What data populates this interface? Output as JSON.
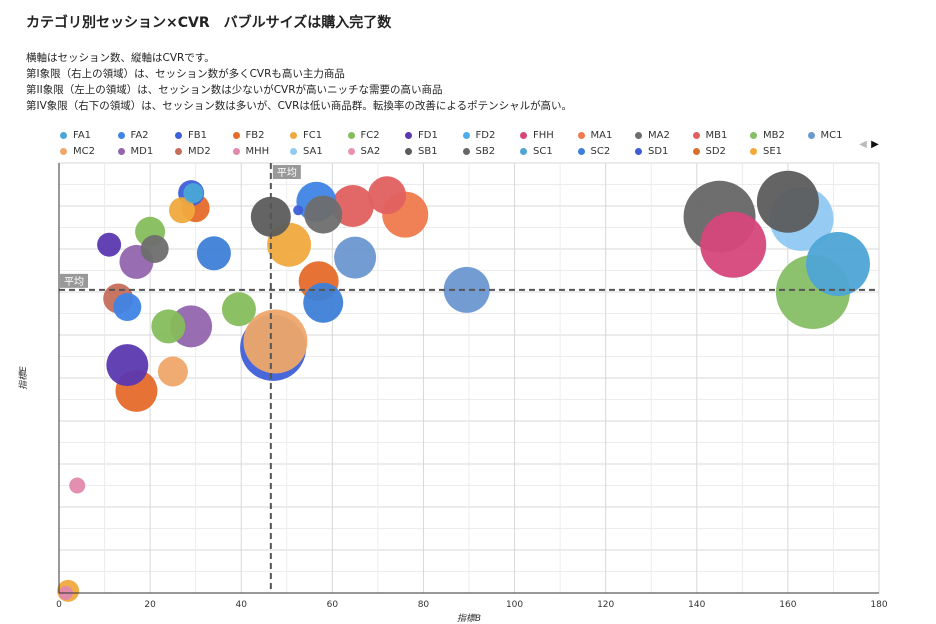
{
  "title": "カテゴリ別セッション×CVR　バブルサイズは購入完了数",
  "description": [
    "横軸はセッション数、縦軸はCVRです。",
    "第I象限（右上の領域）は、セッション数が多くCVRも高い主力商品",
    "第II象限（左上の領域）は、セッション数は少ないがCVRが高いニッチな需要の高い商品",
    "第IV象限（右下の領域）は、セッション数は多いが、CVRは低い商品群。転換率の改善によるポテンシャルが高い。"
  ],
  "pager": {
    "prev_icon": "triangle-left-icon",
    "next_icon": "triangle-right-icon"
  },
  "chart_data": {
    "type": "scatter",
    "bubble": true,
    "xlabel": "指標B",
    "ylabel": "指標E",
    "xlim": [
      0,
      180
    ],
    "ylim": [
      0,
      10
    ],
    "xticks": [
      0,
      20,
      40,
      60,
      80,
      100,
      120,
      140,
      160,
      180
    ],
    "grid": true,
    "legend_position": "top",
    "average_label": "平均",
    "average_x": 46.5,
    "average_y": 7.05,
    "series": [
      {
        "name": "FA1",
        "color": "#4ba6d6",
        "points": [
          [
            29.5,
            9.3,
            10
          ],
          [
            166,
            7.75,
            0.5
          ]
        ]
      },
      {
        "name": "FA2",
        "color": "#3f84e5",
        "points": [
          [
            15,
            6.65,
            14
          ],
          [
            56.5,
            9.1,
            20
          ]
        ]
      },
      {
        "name": "FB1",
        "color": "#3e5fd8",
        "points": [
          [
            29,
            9.3,
            13
          ],
          [
            47,
            5.7,
            33
          ],
          [
            52.5,
            8.9,
            5
          ]
        ]
      },
      {
        "name": "FB2",
        "color": "#e56b2a",
        "points": [
          [
            30,
            8.95,
            14
          ],
          [
            17,
            4.7,
            21
          ],
          [
            57,
            7.25,
            20
          ]
        ]
      },
      {
        "name": "FC1",
        "color": "#f0a93e",
        "points": [
          [
            50.5,
            8.1,
            22
          ],
          [
            2,
            0.05,
            11
          ],
          [
            27,
            8.9,
            13
          ]
        ]
      },
      {
        "name": "FC2",
        "color": "#86bd5c",
        "points": [
          [
            20,
            8.4,
            15
          ],
          [
            24,
            6.2,
            17
          ],
          [
            39.5,
            6.6,
            17
          ]
        ]
      },
      {
        "name": "FD1",
        "color": "#5b38b0",
        "points": [
          [
            11,
            8.1,
            12
          ],
          [
            15,
            5.3,
            21
          ]
        ]
      },
      {
        "name": "FD2",
        "color": "#4dade6",
        "points": []
      },
      {
        "name": "FHH",
        "color": "#d6467a",
        "points": [
          [
            148,
            8.1,
            33
          ]
        ]
      },
      {
        "name": "MA1",
        "color": "#ef7a4d",
        "points": [
          [
            76,
            8.8,
            23
          ]
        ]
      },
      {
        "name": "MA2",
        "color": "#6e6e6e",
        "points": [
          [
            21,
            8.0,
            14
          ],
          [
            58,
            8.8,
            19
          ]
        ]
      },
      {
        "name": "MB1",
        "color": "#e06060",
        "points": [
          [
            64.5,
            9.0,
            21
          ],
          [
            72,
            9.25,
            19
          ]
        ]
      },
      {
        "name": "MB2",
        "color": "#86bf65",
        "points": [
          [
            165.5,
            7.0,
            37
          ]
        ]
      },
      {
        "name": "MC1",
        "color": "#6c98d0",
        "points": [
          [
            65,
            7.8,
            21
          ],
          [
            89.5,
            7.05,
            23
          ]
        ]
      },
      {
        "name": "MC2",
        "color": "#eea76a",
        "points": [
          [
            47.5,
            5.85,
            32
          ],
          [
            25,
            5.15,
            15
          ]
        ]
      },
      {
        "name": "MD1",
        "color": "#9265ad",
        "points": [
          [
            17,
            7.7,
            17
          ],
          [
            29,
            6.2,
            21
          ]
        ]
      },
      {
        "name": "MD2",
        "color": "#c56e5c",
        "points": [
          [
            13,
            6.85,
            15
          ]
        ]
      },
      {
        "name": "MHH",
        "color": "#e089ad",
        "points": [
          [
            4,
            2.5,
            8
          ],
          [
            1.5,
            0,
            7
          ]
        ]
      },
      {
        "name": "SA1",
        "color": "#90c9f3",
        "points": [
          [
            163,
            8.7,
            32
          ]
        ]
      },
      {
        "name": "SA2",
        "color": "#e892b2",
        "points": []
      },
      {
        "name": "SB1",
        "color": "#5c5c5c",
        "points": [
          [
            46.5,
            8.75,
            20
          ],
          [
            160,
            9.1,
            31
          ]
        ]
      },
      {
        "name": "SB2",
        "color": "#666666",
        "points": [
          [
            145,
            8.75,
            36
          ]
        ]
      },
      {
        "name": "SC1",
        "color": "#4ea5d6",
        "points": [
          [
            171,
            7.65,
            32
          ]
        ]
      },
      {
        "name": "SC2",
        "color": "#3e7fd8",
        "points": [
          [
            34,
            7.9,
            17
          ],
          [
            58,
            6.75,
            20
          ]
        ]
      },
      {
        "name": "SD1",
        "color": "#3d5dd6",
        "points": []
      },
      {
        "name": "SD2",
        "color": "#d9702a",
        "points": []
      },
      {
        "name": "SE1",
        "color": "#f0a93a",
        "points": []
      }
    ]
  }
}
